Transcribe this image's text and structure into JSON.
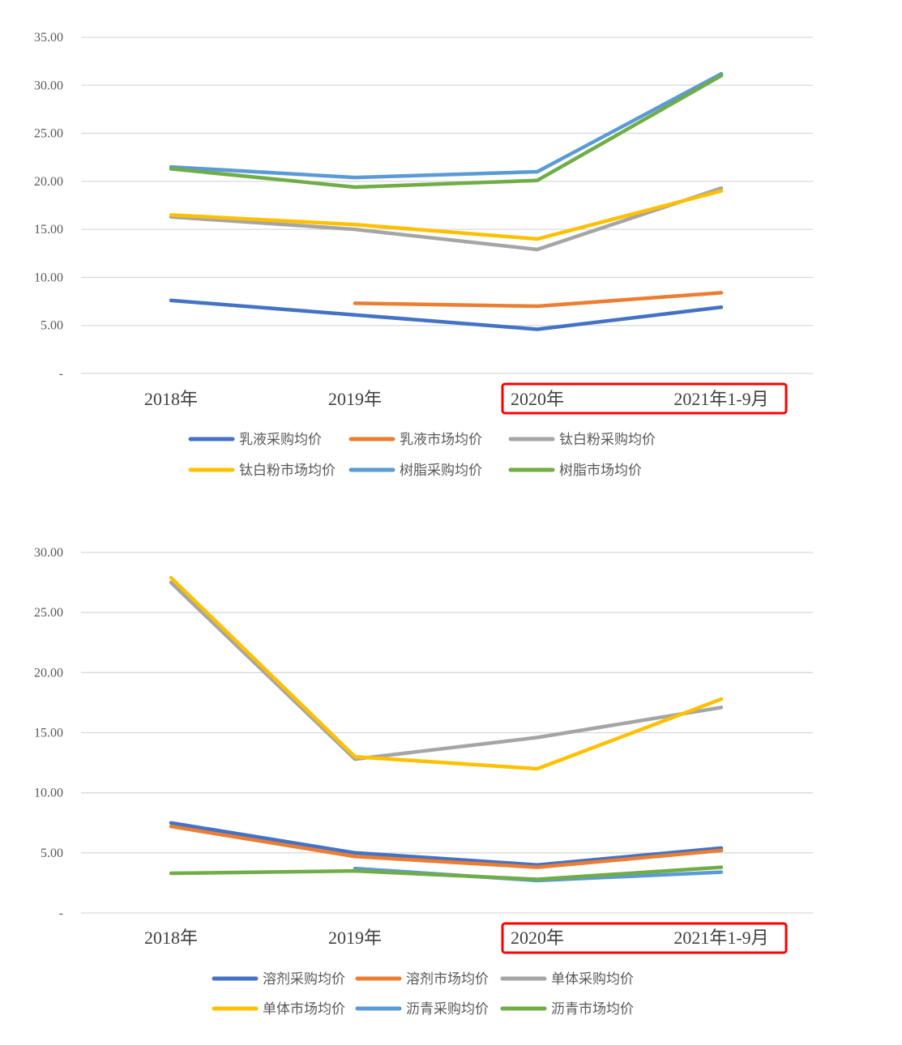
{
  "chart_data": [
    {
      "type": "line",
      "categories": [
        "2018年",
        "2019年",
        "2020年",
        "2021年1-9月"
      ],
      "ylim": [
        0,
        35
      ],
      "yticks": [
        "-",
        "5.00",
        "10.00",
        "15.00",
        "20.00",
        "25.00",
        "30.00",
        "35.00"
      ],
      "grid": true,
      "legend_position": "bottom",
      "highlight_categories": [
        "2020年",
        "2021年1-9月"
      ],
      "highlight_color": "#ff0000",
      "series": [
        {
          "name": "乳液采购均价",
          "color": "#4472c4",
          "values": [
            7.6,
            6.1,
            4.6,
            6.9
          ]
        },
        {
          "name": "乳液市场均价",
          "color": "#ed7d31",
          "values": [
            null,
            7.3,
            7.0,
            8.4
          ]
        },
        {
          "name": "钛白粉采购均价",
          "color": "#a5a5a5",
          "values": [
            16.3,
            15.0,
            12.9,
            19.3
          ]
        },
        {
          "name": "钛白粉市场均价",
          "color": "#ffc000",
          "values": [
            16.5,
            15.5,
            14.0,
            19.0
          ]
        },
        {
          "name": "树脂采购均价",
          "color": "#5b9bd5",
          "values": [
            21.5,
            20.4,
            21.0,
            31.2
          ]
        },
        {
          "name": "树脂市场均价",
          "color": "#70ad47",
          "values": [
            21.3,
            19.4,
            20.1,
            31.0
          ]
        }
      ]
    },
    {
      "type": "line",
      "categories": [
        "2018年",
        "2019年",
        "2020年",
        "2021年1-9月"
      ],
      "ylim": [
        0,
        30
      ],
      "yticks": [
        "-",
        "5.00",
        "10.00",
        "15.00",
        "20.00",
        "25.00",
        "30.00"
      ],
      "grid": true,
      "legend_position": "bottom",
      "highlight_categories": [
        "2020年",
        "2021年1-9月"
      ],
      "highlight_color": "#ff0000",
      "series": [
        {
          "name": "溶剂采购均价",
          "color": "#4472c4",
          "values": [
            7.5,
            5.0,
            4.0,
            5.4
          ]
        },
        {
          "name": "溶剂市场均价",
          "color": "#ed7d31",
          "values": [
            7.2,
            4.7,
            3.8,
            5.2
          ]
        },
        {
          "name": "单体采购均价",
          "color": "#a5a5a5",
          "values": [
            27.5,
            12.8,
            14.6,
            17.1
          ]
        },
        {
          "name": "单体市场均价",
          "color": "#ffc000",
          "values": [
            27.9,
            13.0,
            12.0,
            17.8
          ]
        },
        {
          "name": "沥青采购均价",
          "color": "#5b9bd5",
          "values": [
            null,
            3.7,
            2.7,
            3.4
          ]
        },
        {
          "name": "沥青市场均价",
          "color": "#70ad47",
          "values": [
            3.3,
            3.5,
            2.8,
            3.8
          ]
        }
      ]
    }
  ]
}
